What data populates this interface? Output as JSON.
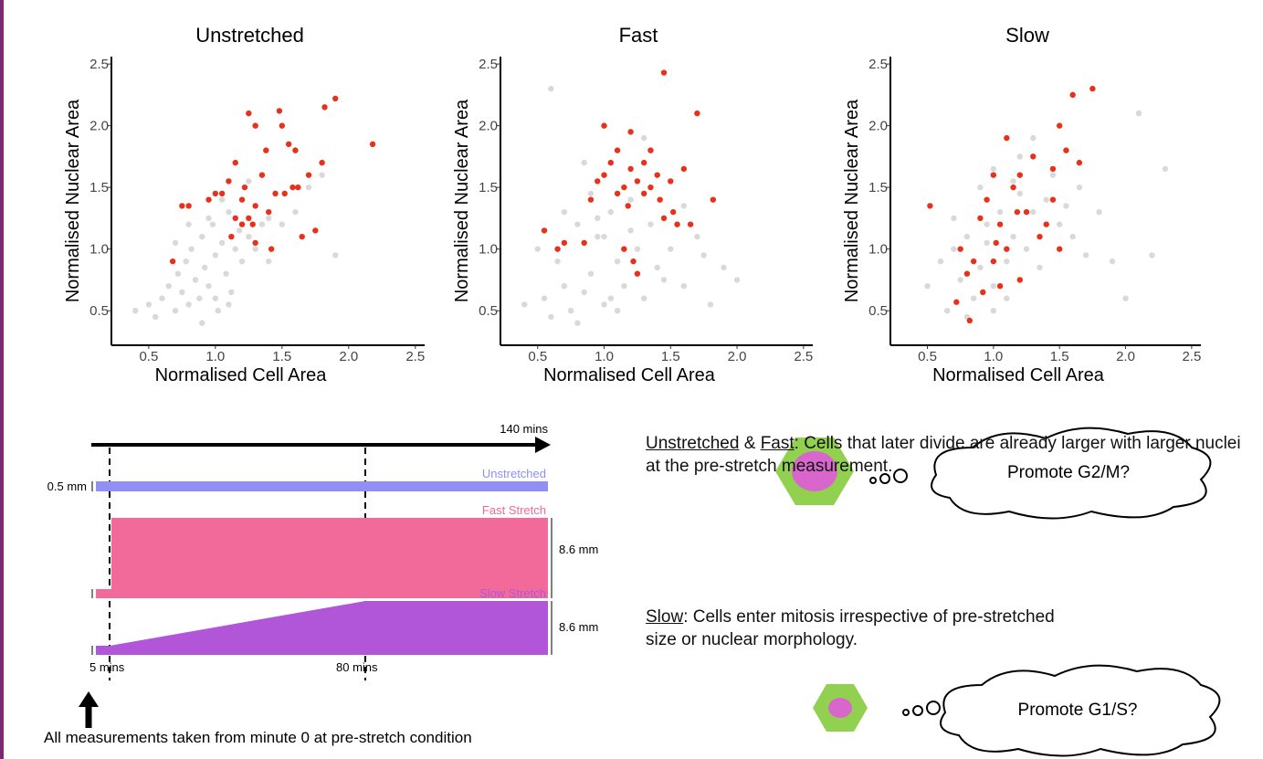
{
  "chart_data": [
    {
      "type": "scatter",
      "title": "Unstretched",
      "xlabel": "Normalised Cell Area",
      "ylabel": "Normalised Nuclear Area",
      "xlim": [
        0.22,
        2.57
      ],
      "ylim": [
        0.22,
        2.56
      ],
      "xticks": [
        0.5,
        {
          "value": 1,
          "label": "1.0"
        },
        1.5,
        {
          "value": 2,
          "label": "2.0"
        },
        2.5
      ],
      "yticks": [
        0.5,
        {
          "value": 1,
          "label": "1.0"
        },
        1.5,
        {
          "value": 2,
          "label": "2.0"
        },
        2.5
      ],
      "series": [
        {
          "color": "#d9d9d9",
          "x": [
            0.4,
            0.5,
            0.55,
            0.6,
            0.65,
            0.7,
            0.72,
            0.75,
            0.78,
            0.8,
            0.82,
            0.85,
            0.88,
            0.9,
            0.92,
            0.95,
            0.98,
            1.0,
            1.02,
            1.05,
            1.08,
            1.1,
            1.12,
            1.15,
            1.18,
            1.2,
            1.25,
            1.3,
            1.35,
            1.4,
            1.5,
            1.6,
            1.7,
            1.8,
            0.9,
            1.0,
            1.1,
            0.8,
            0.7,
            1.25,
            1.4,
            1.05,
            0.95,
            1.9
          ],
          "values": [
            0.5,
            0.55,
            0.45,
            0.6,
            0.7,
            0.5,
            0.8,
            0.65,
            0.9,
            0.55,
            1.0,
            0.75,
            0.6,
            1.1,
            0.85,
            0.7,
            1.2,
            0.95,
            0.5,
            1.05,
            0.8,
            1.3,
            0.65,
            1.0,
            1.15,
            0.9,
            1.1,
            1.0,
            1.2,
            0.9,
            1.2,
            1.3,
            1.5,
            1.6,
            0.4,
            0.6,
            0.55,
            1.2,
            1.05,
            1.55,
            1.25,
            1.4,
            1.25,
            0.95
          ]
        },
        {
          "color": "#e8311a",
          "x": [
            0.68,
            0.75,
            0.8,
            0.95,
            1.0,
            1.05,
            1.1,
            1.15,
            1.2,
            1.2,
            1.22,
            1.25,
            1.28,
            1.3,
            1.25,
            1.3,
            1.35,
            1.38,
            1.4,
            1.45,
            1.48,
            1.5,
            1.52,
            1.55,
            1.6,
            1.62,
            1.65,
            1.7,
            1.75,
            1.8,
            1.82,
            1.9,
            2.18,
            1.15,
            1.3,
            1.42,
            1.58,
            1.12
          ],
          "values": [
            0.9,
            1.35,
            1.35,
            1.4,
            1.45,
            1.45,
            1.55,
            1.25,
            1.2,
            1.4,
            1.5,
            1.25,
            1.2,
            1.35,
            2.1,
            2.0,
            1.6,
            1.8,
            1.3,
            1.45,
            2.12,
            2.0,
            1.45,
            1.85,
            1.8,
            1.5,
            1.1,
            1.6,
            1.15,
            1.7,
            2.15,
            2.22,
            1.85,
            1.7,
            1.05,
            1.0,
            1.5,
            1.1
          ]
        }
      ]
    },
    {
      "type": "scatter",
      "title": "Fast",
      "xlabel": "Normalised Cell Area",
      "ylabel": "Normalised Nuclear Area",
      "xlim": [
        0.22,
        2.57
      ],
      "ylim": [
        0.22,
        2.56
      ],
      "xticks": [
        0.5,
        {
          "value": 1,
          "label": "1.0"
        },
        1.5,
        {
          "value": 2,
          "label": "2.0"
        },
        2.5
      ],
      "yticks": [
        0.5,
        {
          "value": 1,
          "label": "1.0"
        },
        1.5,
        {
          "value": 2,
          "label": "2.0"
        },
        2.5
      ],
      "series": [
        {
          "color": "#d9d9d9",
          "x": [
            0.4,
            0.5,
            0.55,
            0.6,
            0.65,
            0.7,
            0.75,
            0.8,
            0.85,
            0.9,
            0.95,
            1.0,
            1.05,
            1.1,
            1.15,
            1.2,
            1.25,
            1.3,
            1.35,
            1.4,
            1.5,
            1.6,
            1.7,
            1.8,
            1.9,
            2.0,
            0.7,
            0.8,
            0.9,
            1.0,
            1.1,
            1.2,
            1.3,
            1.45,
            1.6,
            0.6,
            0.85,
            1.05,
            1.75,
            0.95
          ],
          "values": [
            0.55,
            1.0,
            0.6,
            0.45,
            0.9,
            0.7,
            0.5,
            1.2,
            0.65,
            0.8,
            1.1,
            0.55,
            1.3,
            0.9,
            0.7,
            1.15,
            1.0,
            0.6,
            1.2,
            0.85,
            1.0,
            0.7,
            1.1,
            0.55,
            0.85,
            0.75,
            1.3,
            0.4,
            1.45,
            1.1,
            0.5,
            1.4,
            1.9,
            0.75,
            1.35,
            2.3,
            1.7,
            0.6,
            0.95,
            1.25
          ]
        },
        {
          "color": "#e8311a",
          "x": [
            0.55,
            0.65,
            0.7,
            0.85,
            0.9,
            0.95,
            1.0,
            1.05,
            1.1,
            1.1,
            1.15,
            1.18,
            1.2,
            1.2,
            1.25,
            1.25,
            1.22,
            1.3,
            1.3,
            1.35,
            1.35,
            1.4,
            1.42,
            1.45,
            1.45,
            1.5,
            1.52,
            1.55,
            1.6,
            1.65,
            1.7,
            1.82,
            1.0,
            1.15
          ],
          "values": [
            1.15,
            1.0,
            1.05,
            1.05,
            1.4,
            1.55,
            1.6,
            1.7,
            1.8,
            1.45,
            1.5,
            1.35,
            1.65,
            1.95,
            1.55,
            0.8,
            0.9,
            1.7,
            1.45,
            1.8,
            1.5,
            1.6,
            1.4,
            1.25,
            2.43,
            1.55,
            1.3,
            1.2,
            1.65,
            1.2,
            2.1,
            1.4,
            2.0,
            1.0
          ]
        }
      ]
    },
    {
      "type": "scatter",
      "title": "Slow",
      "xlabel": "Normalised Cell Area",
      "ylabel": "Normalised Nuclear Area",
      "xlim": [
        0.22,
        2.57
      ],
      "ylim": [
        0.22,
        2.56
      ],
      "xticks": [
        0.5,
        {
          "value": 1,
          "label": "1.0"
        },
        1.5,
        {
          "value": 2,
          "label": "2.0"
        },
        2.5
      ],
      "yticks": [
        0.5,
        {
          "value": 1,
          "label": "1.0"
        },
        1.5,
        {
          "value": 2,
          "label": "2.0"
        },
        2.5
      ],
      "series": [
        {
          "color": "#d9d9d9",
          "x": [
            0.5,
            0.6,
            0.65,
            0.7,
            0.75,
            0.8,
            0.85,
            0.9,
            0.95,
            1.0,
            1.05,
            1.1,
            1.15,
            1.2,
            1.25,
            1.3,
            1.35,
            1.4,
            1.5,
            1.6,
            1.7,
            1.8,
            1.9,
            2.0,
            2.1,
            2.3,
            0.8,
            0.9,
            1.0,
            1.1,
            1.2,
            1.3,
            1.45,
            1.55,
            0.7,
            1.0,
            1.15,
            1.65,
            2.2,
            0.95
          ],
          "values": [
            0.7,
            0.9,
            0.5,
            1.0,
            0.75,
            1.1,
            0.6,
            0.85,
            1.2,
            0.7,
            1.3,
            0.9,
            1.1,
            1.45,
            1.0,
            1.3,
            0.85,
            1.4,
            1.2,
            1.1,
            0.95,
            1.3,
            0.9,
            0.6,
            2.1,
            1.65,
            0.45,
            1.5,
            1.65,
            0.6,
            1.75,
            1.9,
            1.6,
            1.35,
            1.25,
            0.5,
            1.55,
            1.5,
            0.95,
            1.05
          ]
        },
        {
          "color": "#e8311a",
          "x": [
            0.52,
            0.72,
            0.75,
            0.8,
            0.82,
            0.85,
            0.9,
            0.92,
            0.95,
            1.0,
            1.0,
            1.02,
            1.05,
            1.05,
            1.1,
            1.1,
            1.15,
            1.18,
            1.2,
            1.2,
            1.25,
            1.3,
            1.35,
            1.4,
            1.45,
            1.5,
            1.5,
            1.55,
            1.6,
            1.65,
            1.75,
            1.45
          ],
          "values": [
            1.35,
            0.57,
            1.0,
            0.8,
            0.42,
            0.9,
            1.25,
            0.65,
            1.4,
            0.9,
            1.6,
            1.05,
            0.7,
            1.2,
            1.9,
            1.0,
            1.5,
            1.3,
            0.75,
            1.6,
            1.3,
            1.75,
            1.1,
            1.2,
            1.65,
            2.0,
            1.0,
            1.8,
            2.25,
            1.7,
            2.3,
            1.4
          ]
        }
      ]
    }
  ],
  "diagram": {
    "total_time": "140 mins",
    "unstretched": {
      "label": "Unstretched",
      "width": "0.5 mm"
    },
    "fast": {
      "label": "Fast Stretch",
      "width": "8.6 mm"
    },
    "slow": {
      "label": "Slow Stretch",
      "width": "8.6 mm"
    },
    "times": [
      "5 mins",
      "80 mins"
    ],
    "caption": "All measurements taken from minute 0 at pre-stretch condition"
  },
  "notes": {
    "first": {
      "lead1": "Unstretched",
      "joiner": " & ",
      "lead2": "Fast",
      "text": ": Cells that later divide are already larger with larger nuclei at the pre-stretch measurement."
    },
    "second": {
      "lead": "Slow",
      "text": ": Cells enter mitosis irrespective of pre-stretched size or nuclear morphology."
    },
    "clouds": [
      "Promote G2/M?",
      "Promote G1/S?"
    ]
  }
}
